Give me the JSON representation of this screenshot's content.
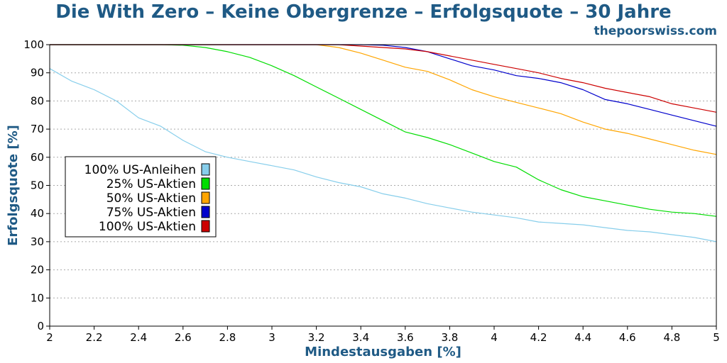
{
  "header": {
    "title": "Die With Zero – Keine Obergrenze – Erfolgsquote – 30 Jahre",
    "source": "thepoorswiss.com"
  },
  "chart_data": {
    "type": "line",
    "title": "Die With Zero – Keine Obergrenze – Erfolgsquote – 30 Jahre",
    "xlabel": "Mindestausgaben [%]",
    "ylabel": "Erfolgsquote [%]",
    "xlim": [
      2,
      5
    ],
    "ylim": [
      0,
      100
    ],
    "x_ticks": [
      "2",
      "2.2",
      "2.4",
      "2.6",
      "2.8",
      "3",
      "3.2",
      "3.4",
      "3.6",
      "3.8",
      "4",
      "4.2",
      "4.4",
      "4.6",
      "4.8",
      "5"
    ],
    "y_ticks": [
      "0",
      "10",
      "20",
      "30",
      "40",
      "50",
      "60",
      "70",
      "80",
      "90",
      "100"
    ],
    "grid": "horizontal-dotted",
    "legend_position": "center-left",
    "x": [
      2.0,
      2.1,
      2.2,
      2.3,
      2.4,
      2.5,
      2.6,
      2.7,
      2.8,
      2.9,
      3.0,
      3.1,
      3.2,
      3.3,
      3.4,
      3.5,
      3.6,
      3.7,
      3.8,
      3.9,
      4.0,
      4.1,
      4.2,
      4.3,
      4.4,
      4.5,
      4.6,
      4.7,
      4.8,
      4.9,
      5.0
    ],
    "series": [
      {
        "name": "100% US-Anleihen",
        "color": "#87ceeb",
        "values": [
          91.5,
          87,
          84,
          80,
          74,
          71,
          66,
          62,
          60,
          58.5,
          57,
          55.5,
          53,
          51,
          49.5,
          47,
          45.5,
          43.5,
          42,
          40.5,
          39.5,
          38.5,
          37,
          36.5,
          36,
          35,
          34,
          33.5,
          32.5,
          31.5,
          30
        ]
      },
      {
        "name": "25% US-Aktien",
        "color": "#00dd00",
        "values": [
          100,
          100,
          100,
          100,
          100,
          100,
          99.8,
          99,
          97.5,
          95.5,
          92.5,
          89,
          85,
          81,
          77,
          73,
          69,
          67,
          64.5,
          61.5,
          58.5,
          56.5,
          52,
          48.5,
          46,
          44.5,
          43,
          41.5,
          40.5,
          40,
          39
        ]
      },
      {
        "name": "50% US-Aktien",
        "color": "#ffa500",
        "values": [
          100,
          100,
          100,
          100,
          100,
          100,
          100,
          100,
          100,
          100,
          100,
          100,
          100,
          99,
          97,
          94.5,
          92,
          90.5,
          87.5,
          84,
          81.5,
          79.5,
          77.5,
          75.5,
          72.5,
          70,
          68.5,
          66.5,
          64.5,
          62.5,
          61
        ]
      },
      {
        "name": "75% US-Aktien",
        "color": "#0000cc",
        "values": [
          100,
          100,
          100,
          100,
          100,
          100,
          100,
          100,
          100,
          100,
          100,
          100,
          100,
          100,
          100,
          99.8,
          99,
          97.5,
          95,
          92.5,
          91,
          89,
          88,
          86.5,
          84,
          80.5,
          79,
          77,
          75,
          73,
          71
        ]
      },
      {
        "name": "100% US-Aktien",
        "color": "#cc0000",
        "values": [
          100,
          100,
          100,
          100,
          100,
          100,
          100,
          100,
          100,
          100,
          100,
          100,
          100,
          100,
          99.5,
          99,
          98.5,
          97.5,
          96,
          94.5,
          93,
          91.5,
          90,
          88,
          86.5,
          84.5,
          83,
          81.5,
          79,
          77.5,
          76
        ]
      }
    ]
  }
}
